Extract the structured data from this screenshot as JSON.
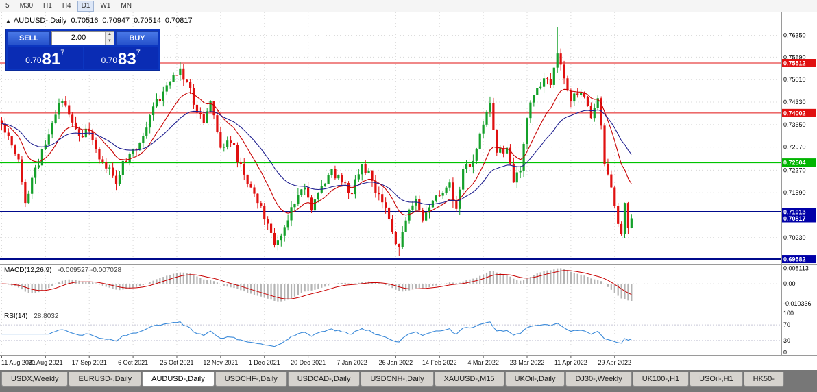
{
  "colors": {
    "bull": "#14a02a",
    "bear": "#e01010",
    "ma_fast": "#c80000",
    "ma_slow": "#202090",
    "grid": "#d8d8d8",
    "separator": "#9a9a9a",
    "level_red": "#e01010",
    "level_green": "#00c400",
    "level_navy": "#000a8c",
    "macd_hist": "#b4b4b4",
    "macd_signal": "#c80000",
    "rsi": "#3b8ad9",
    "badge_red": "#e01010",
    "badge_green": "#00b400",
    "badge_blue": "#0000a8"
  },
  "toolbar": {
    "timeframes": [
      "5",
      "M30",
      "H1",
      "H4",
      "D1",
      "W1",
      "MN"
    ],
    "active": "D1"
  },
  "chart_header": {
    "collapse_icon": "▲",
    "title": "AUDUSD-,Daily",
    "open": "0.70516",
    "high": "0.70947",
    "low": "0.70514",
    "close": "0.70817"
  },
  "trade_panel": {
    "sell_label": "SELL",
    "buy_label": "BUY",
    "volume": "2.00",
    "spinner_up": "▲",
    "spinner_down": "▼",
    "bid": {
      "prefix": "0.70",
      "big": "81",
      "sup": "7"
    },
    "ask": {
      "prefix": "0.70",
      "big": "83",
      "sup": "7"
    }
  },
  "chart_data": {
    "type": "candlestick",
    "symbol": "AUDUSD-",
    "timeframe": "Daily",
    "price_axis": {
      "top": 0.77046,
      "bottom": 0.69438,
      "labels": [
        "0.76350",
        "0.75690",
        "0.75010",
        "0.74330",
        "0.73650",
        "0.72970",
        "0.72270",
        "0.71590",
        "0.70230"
      ]
    },
    "levels": [
      {
        "price": 0.75512,
        "label": "0.75512",
        "color": "red",
        "width": 1
      },
      {
        "price": 0.74002,
        "label": "0.74002",
        "color": "red",
        "width": 1
      },
      {
        "price": 0.72504,
        "label": "0.72504",
        "color": "green",
        "width": 2
      },
      {
        "price": 0.71013,
        "label": "0.71013",
        "color": "blue",
        "width": 2
      },
      {
        "price": 0.69582,
        "label": "0.69582",
        "color": "blue",
        "width": 3
      }
    ],
    "current_price": {
      "price": 0.70817,
      "label": "0.70817",
      "color": "blue"
    },
    "date_labels": [
      {
        "i": 0,
        "t": "11 Aug 2021"
      },
      {
        "i": 13,
        "t": "30 Aug 2021"
      },
      {
        "i": 26,
        "t": "17 Sep 2021"
      },
      {
        "i": 39,
        "t": "6 Oct 2021"
      },
      {
        "i": 52,
        "t": "25 Oct 2021"
      },
      {
        "i": 65,
        "t": "12 Nov 2021"
      },
      {
        "i": 78,
        "t": "1 Dec 2021"
      },
      {
        "i": 91,
        "t": "20 Dec 2021"
      },
      {
        "i": 104,
        "t": "7 Jan 2022"
      },
      {
        "i": 117,
        "t": "26 Jan 2022"
      },
      {
        "i": 130,
        "t": "14 Feb 2022"
      },
      {
        "i": 143,
        "t": "4 Mar 2022"
      },
      {
        "i": 156,
        "t": "23 Mar 2022"
      },
      {
        "i": 169,
        "t": "11 Apr 2022"
      },
      {
        "i": 182,
        "t": "29 Apr 2022"
      }
    ],
    "bars_total_slots": 232,
    "last_bar_index": 187,
    "anchors": [
      [
        0,
        0.7368
      ],
      [
        2,
        0.733
      ],
      [
        5,
        0.726
      ],
      [
        7,
        0.7128
      ],
      [
        10,
        0.7235
      ],
      [
        13,
        0.7305
      ],
      [
        16,
        0.7395
      ],
      [
        18,
        0.7437
      ],
      [
        20,
        0.7395
      ],
      [
        23,
        0.733
      ],
      [
        26,
        0.7345
      ],
      [
        29,
        0.726
      ],
      [
        32,
        0.7235
      ],
      [
        34,
        0.7185
      ],
      [
        36,
        0.7255
      ],
      [
        39,
        0.729
      ],
      [
        42,
        0.733
      ],
      [
        45,
        0.742
      ],
      [
        48,
        0.7465
      ],
      [
        51,
        0.7515
      ],
      [
        53,
        0.7535
      ],
      [
        55,
        0.7495
      ],
      [
        57,
        0.7425
      ],
      [
        60,
        0.737
      ],
      [
        62,
        0.7435
      ],
      [
        65,
        0.7295
      ],
      [
        68,
        0.731
      ],
      [
        71,
        0.7245
      ],
      [
        74,
        0.7175
      ],
      [
        76,
        0.7128
      ],
      [
        79,
        0.7065
      ],
      [
        81,
        0.7
      ],
      [
        84,
        0.7055
      ],
      [
        87,
        0.7125
      ],
      [
        90,
        0.7175
      ],
      [
        92,
        0.7105
      ],
      [
        95,
        0.718
      ],
      [
        98,
        0.723
      ],
      [
        101,
        0.719
      ],
      [
        104,
        0.7155
      ],
      [
        107,
        0.7245
      ],
      [
        110,
        0.7195
      ],
      [
        113,
        0.713
      ],
      [
        116,
        0.704
      ],
      [
        118,
        0.6995
      ],
      [
        120,
        0.7075
      ],
      [
        123,
        0.714
      ],
      [
        125,
        0.7075
      ],
      [
        128,
        0.7135
      ],
      [
        130,
        0.715
      ],
      [
        133,
        0.719
      ],
      [
        135,
        0.711
      ],
      [
        137,
        0.723
      ],
      [
        140,
        0.7255
      ],
      [
        143,
        0.7365
      ],
      [
        145,
        0.743
      ],
      [
        147,
        0.728
      ],
      [
        150,
        0.7295
      ],
      [
        152,
        0.719
      ],
      [
        154,
        0.7225
      ],
      [
        156,
        0.7385
      ],
      [
        159,
        0.7475
      ],
      [
        161,
        0.7505
      ],
      [
        163,
        0.7485
      ],
      [
        165,
        0.758
      ],
      [
        167,
        0.7505
      ],
      [
        169,
        0.7435
      ],
      [
        171,
        0.7455
      ],
      [
        173,
        0.745
      ],
      [
        175,
        0.7385
      ],
      [
        177,
        0.7445
      ],
      [
        179,
        0.7245
      ],
      [
        181,
        0.7175
      ],
      [
        182,
        0.712
      ],
      [
        184,
        0.7035
      ],
      [
        185,
        0.7128
      ],
      [
        186,
        0.7052
      ],
      [
        187,
        0.70817
      ]
    ],
    "wick_overrides": {
      "53": {
        "high": 0.7555
      },
      "81": {
        "low": 0.6993
      },
      "118": {
        "low": 0.6968
      },
      "165": {
        "high": 0.7661
      },
      "184": {
        "low": 0.7029
      }
    },
    "last_candle": {
      "open": 0.70516,
      "high": 0.70947,
      "low": 0.70514,
      "close": 0.70817
    },
    "ma": {
      "fast_period": 13,
      "slow_period": 30
    }
  },
  "macd_panel": {
    "label": "MACD(12,26,9)",
    "values": "-0.009527 -0.007028",
    "params": [
      12,
      26,
      9
    ],
    "axis_labels": [
      "0.008113",
      "0.00",
      "-0.010336"
    ],
    "range": {
      "min": -0.0125,
      "max": 0.009
    }
  },
  "rsi_panel": {
    "label": "RSI(14)",
    "value": "28.8032",
    "period": 14,
    "levels": [
      100,
      70,
      30,
      0
    ]
  },
  "tabs": {
    "items": [
      {
        "label": "USDX,Weekly",
        "active": false
      },
      {
        "label": "EURUSD-,Daily",
        "active": false
      },
      {
        "label": "AUDUSD-,Daily",
        "active": true
      },
      {
        "label": "USDCHF-,Daily",
        "active": false
      },
      {
        "label": "USDCAD-,Daily",
        "active": false
      },
      {
        "label": "USDCNH-,Daily",
        "active": false
      },
      {
        "label": "XAUUSD-,M15",
        "active": false
      },
      {
        "label": "UKOil-,Daily",
        "active": false
      },
      {
        "label": "DJ30-,Weekly",
        "active": false
      },
      {
        "label": "UK100-,H1",
        "active": false
      },
      {
        "label": "USOil-,H1",
        "active": false
      },
      {
        "label": "HK50-",
        "active": false
      }
    ]
  }
}
